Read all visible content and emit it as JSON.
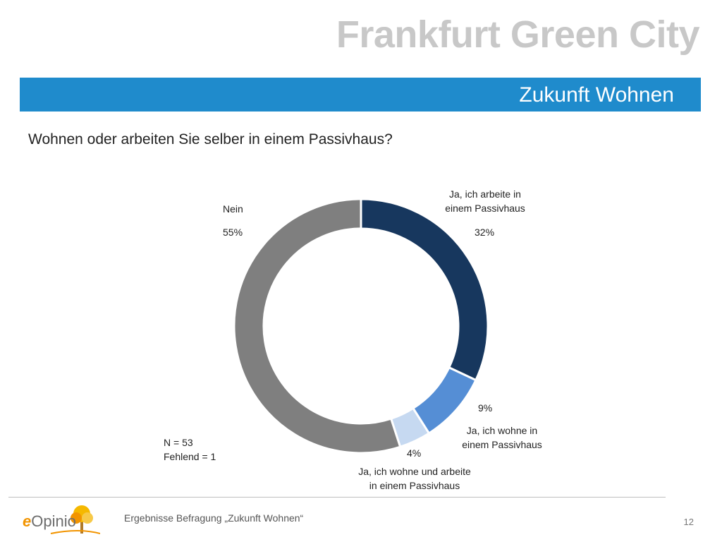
{
  "header": {
    "brand": "Frankfurt Green City",
    "section_title": "Zukunft Wohnen"
  },
  "question": "Wohnen oder arbeiten Sie selber in einem Passivhaus?",
  "chart_data": {
    "type": "pie",
    "style": "donut",
    "title": "Wohnen oder arbeiten Sie selber in einem Passivhaus?",
    "slices": [
      {
        "label_line1": "Ja, ich arbeite in",
        "label_line2": "einem Passivhaus",
        "value": 32,
        "value_label": "32%",
        "color": "#17375e"
      },
      {
        "label_line1": "Ja, ich wohne in",
        "label_line2": "einem Passivhaus",
        "value": 9,
        "value_label": "9%",
        "color": "#558ed5"
      },
      {
        "label_line1": "Ja, ich wohne und arbeite",
        "label_line2": "in einem Passivhaus",
        "value": 4,
        "value_label": "4%",
        "color": "#c6d9f1"
      },
      {
        "label_line1": "Nein",
        "label_line2": "",
        "value": 55,
        "value_label": "55%",
        "color": "#7f7f7f"
      }
    ]
  },
  "notes": {
    "n": "N = 53",
    "missing": "Fehlend = 1"
  },
  "footer": {
    "logo_e": "e",
    "logo_rest": "Opinio",
    "text": "Ergebnisse Befragung „Zukunft Wohnen“",
    "page_number": "12"
  }
}
